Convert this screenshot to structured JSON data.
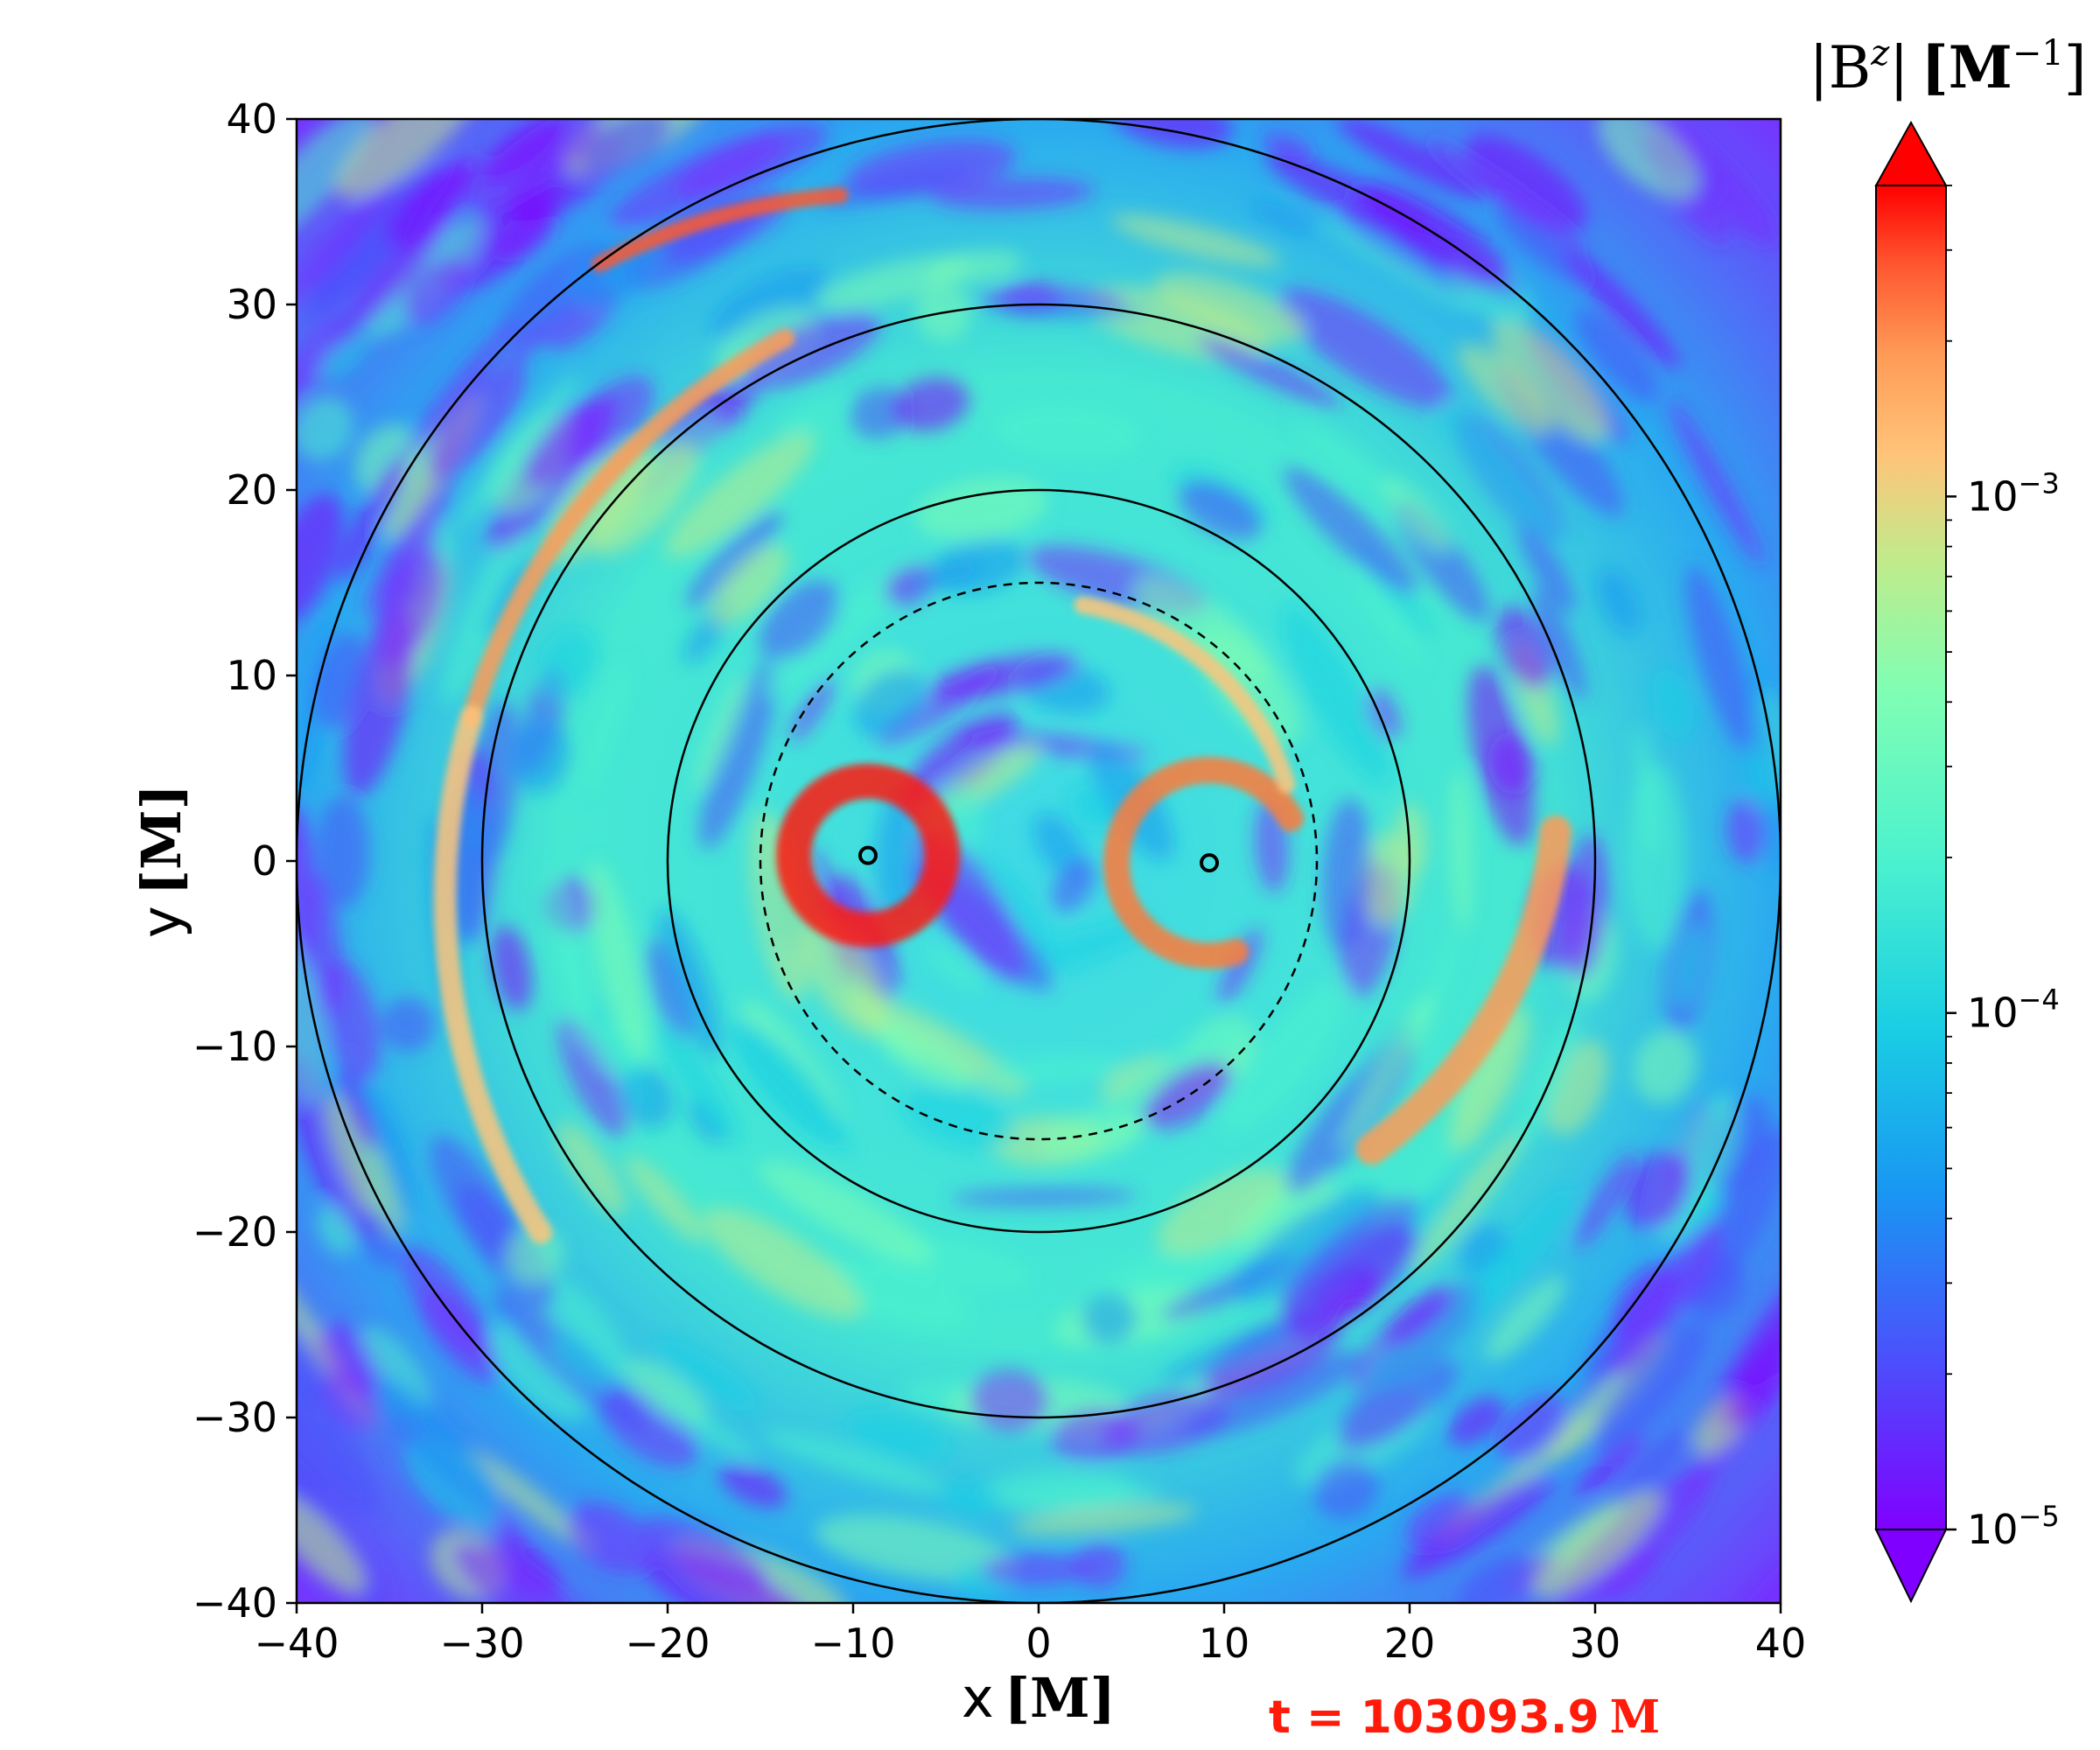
{
  "chart_data": {
    "type": "heatmap",
    "title": "",
    "xlabel": "x",
    "xlabel_unit": "[M]",
    "ylabel": "y",
    "ylabel_unit": "[M]",
    "xlim": [
      -40,
      40
    ],
    "ylim": [
      -40,
      40
    ],
    "xticks": [
      -40,
      -30,
      -20,
      -10,
      0,
      10,
      20,
      30,
      40
    ],
    "yticks": [
      -40,
      -30,
      -20,
      -10,
      0,
      10,
      20,
      30,
      40
    ],
    "xtick_labels": [
      "−40",
      "−30",
      "−20",
      "−10",
      "0",
      "10",
      "20",
      "30",
      "40"
    ],
    "ytick_labels": [
      "−40",
      "−30",
      "−20",
      "−10",
      "0",
      "10",
      "20",
      "30",
      "40"
    ],
    "grid": false,
    "colormap": "rainbow",
    "colorbar": {
      "label": "|B^z| [M^-1]",
      "label_main": "|B",
      "label_sup": "z",
      "label_end": "|",
      "label_unit": "[M",
      "label_unit_sup": "−1",
      "label_unit_end": "]",
      "scale": "log",
      "range": [
        1e-05,
        0.004
      ],
      "ticks": [
        1e-05,
        0.0001,
        0.001
      ],
      "tick_labels": [
        {
          "base": "10",
          "exp": "−5"
        },
        {
          "base": "10",
          "exp": "−4"
        },
        {
          "base": "10",
          "exp": "−3"
        }
      ],
      "extend": "both"
    },
    "circles": [
      {
        "cx": 0,
        "cy": 0,
        "r": 40,
        "style": "solid"
      },
      {
        "cx": 0,
        "cy": 0,
        "r": 30,
        "style": "solid"
      },
      {
        "cx": 0,
        "cy": 0,
        "r": 20,
        "style": "solid"
      },
      {
        "cx": 0,
        "cy": 0,
        "r": 15,
        "style": "dashed"
      }
    ],
    "black_holes": [
      {
        "x": -9.2,
        "y": 0.3
      },
      {
        "x": 9.2,
        "y": -0.1
      }
    ],
    "time_label": "t = 103093.9",
    "time_unit": "M",
    "colors": {
      "low": "#8000ff",
      "high": "#ff0000",
      "annotation": "#ff1a0a"
    }
  }
}
